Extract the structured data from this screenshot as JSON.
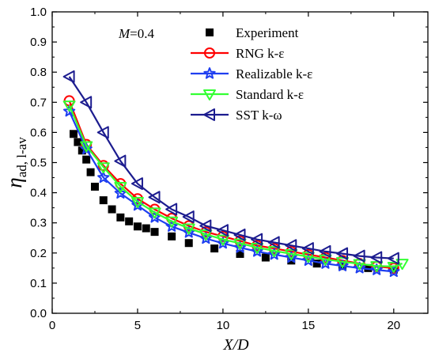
{
  "chart_data": {
    "type": "line",
    "xlabel": "X/D",
    "ylabel_main": "η",
    "ylabel_sub": "ad, l-av",
    "xlim": [
      0,
      22
    ],
    "ylim": [
      0.0,
      1.0
    ],
    "xticks": [
      0,
      5,
      10,
      15,
      20
    ],
    "yticks": [
      0.0,
      0.1,
      0.2,
      0.3,
      0.4,
      0.5,
      0.6,
      0.7,
      0.8,
      0.9,
      1.0
    ],
    "annotation": {
      "label": "M",
      "value": "=0.4"
    },
    "legend_position": "top-right",
    "grid": false,
    "series": [
      {
        "name": "Experiment",
        "color": "#000000",
        "marker": "square",
        "line": false,
        "x": [
          1.25,
          1.5,
          1.75,
          2.0,
          2.25,
          2.5,
          3.0,
          3.5,
          4.0,
          4.5,
          5.0,
          5.5,
          6.0,
          7.0,
          8.0,
          9.5,
          11.0,
          12.5,
          14.0,
          15.5,
          17.0,
          18.5,
          20.0
        ],
        "y": [
          0.595,
          0.568,
          0.54,
          0.51,
          0.468,
          0.42,
          0.375,
          0.345,
          0.318,
          0.305,
          0.288,
          0.282,
          0.27,
          0.255,
          0.233,
          0.215,
          0.197,
          0.185,
          0.175,
          0.165,
          0.157,
          0.15,
          0.145
        ]
      },
      {
        "name": "RNG k-ε",
        "color": "#ff0000",
        "marker": "circle",
        "line": true,
        "x": [
          1.0,
          2.0,
          3.0,
          4.0,
          5.0,
          6.0,
          7.0,
          8.0,
          9.0,
          10.0,
          11.0,
          12.0,
          13.0,
          14.0,
          15.0,
          16.0,
          17.0,
          18.0,
          19.0,
          20.0
        ],
        "y": [
          0.705,
          0.56,
          0.49,
          0.43,
          0.38,
          0.345,
          0.315,
          0.29,
          0.27,
          0.255,
          0.24,
          0.225,
          0.215,
          0.205,
          0.195,
          0.185,
          0.175,
          0.165,
          0.155,
          0.15
        ]
      },
      {
        "name": "Realizable k-ε",
        "color": "#1f3ff0",
        "marker": "star",
        "line": true,
        "x": [
          1.0,
          2.0,
          3.0,
          4.0,
          5.0,
          6.0,
          7.0,
          8.0,
          9.0,
          10.0,
          11.0,
          12.0,
          13.0,
          14.0,
          15.0,
          16.0,
          17.0,
          18.0,
          19.0,
          20.0
        ],
        "y": [
          0.67,
          0.545,
          0.45,
          0.398,
          0.358,
          0.318,
          0.288,
          0.268,
          0.248,
          0.232,
          0.218,
          0.205,
          0.195,
          0.185,
          0.175,
          0.165,
          0.157,
          0.15,
          0.144,
          0.138
        ]
      },
      {
        "name": "Standard k-ε",
        "color": "#33ff33",
        "marker": "triangle-down",
        "line": true,
        "x": [
          1.0,
          2.0,
          3.0,
          4.0,
          5.0,
          6.0,
          7.0,
          8.0,
          9.0,
          10.0,
          11.0,
          12.0,
          13.0,
          14.0,
          15.0,
          16.0,
          17.0,
          18.0,
          19.0,
          20.0,
          20.5
        ],
        "y": [
          0.69,
          0.555,
          0.485,
          0.42,
          0.37,
          0.335,
          0.305,
          0.282,
          0.262,
          0.245,
          0.232,
          0.218,
          0.207,
          0.197,
          0.188,
          0.179,
          0.171,
          0.164,
          0.157,
          0.155,
          0.165
        ]
      },
      {
        "name": "SST k-ω",
        "color": "#1c1c8f",
        "marker": "triangle-left",
        "line": true,
        "x": [
          1.0,
          2.0,
          3.0,
          4.0,
          5.0,
          6.0,
          7.0,
          8.0,
          9.0,
          10.0,
          11.0,
          12.0,
          13.0,
          14.0,
          15.0,
          16.0,
          17.0,
          18.0,
          19.0,
          20.0
        ],
        "y": [
          0.785,
          0.7,
          0.6,
          0.505,
          0.43,
          0.385,
          0.345,
          0.32,
          0.29,
          0.275,
          0.26,
          0.245,
          0.235,
          0.225,
          0.215,
          0.205,
          0.198,
          0.19,
          0.185,
          0.182
        ]
      }
    ]
  }
}
